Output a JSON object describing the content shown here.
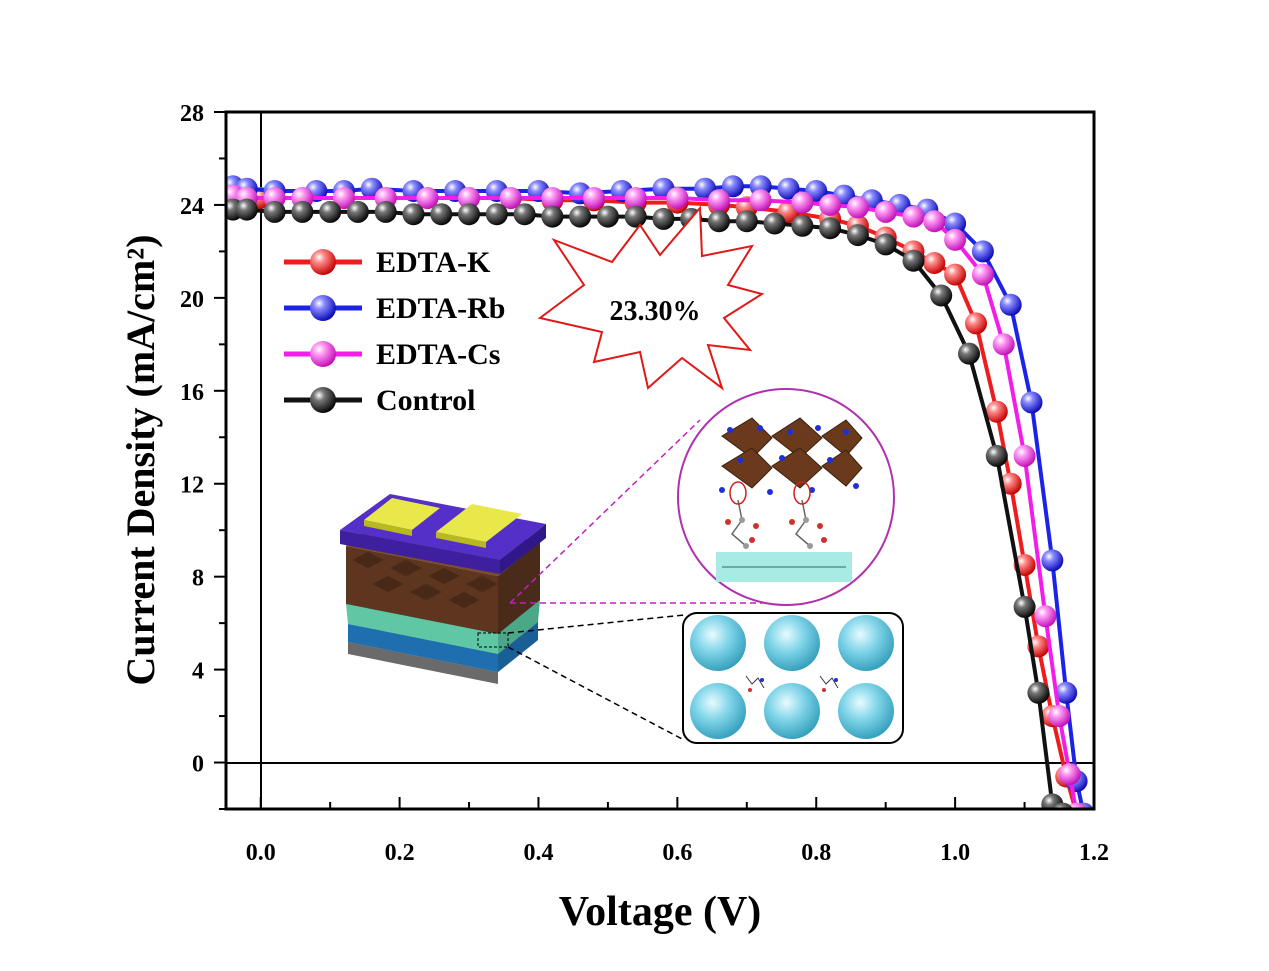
{
  "chart_data": {
    "type": "line",
    "xlabel": "Voltage (V)",
    "ylabel": "Current Density (mA/cm²)",
    "xlim": [
      -0.05,
      1.2
    ],
    "ylim": [
      -2,
      28
    ],
    "xticks": [
      "0.0",
      "0.2",
      "0.4",
      "0.6",
      "0.8",
      "1.0",
      "1.2"
    ],
    "xtick_values": [
      0,
      0.2,
      0.4,
      0.6,
      0.8,
      1.0,
      1.2
    ],
    "yticks": [
      "0",
      "4",
      "8",
      "12",
      "16",
      "20",
      "24",
      "28"
    ],
    "ytick_values": [
      0,
      4,
      8,
      12,
      16,
      20,
      24,
      28
    ],
    "grid": false,
    "legend_position": "top-left",
    "annotation": "23.30%",
    "series": [
      {
        "name": "EDTA-K",
        "color": "#ee1c1c",
        "x": [
          -0.04,
          0.0,
          0.06,
          0.12,
          0.18,
          0.24,
          0.3,
          0.36,
          0.42,
          0.48,
          0.54,
          0.6,
          0.66,
          0.7,
          0.76,
          0.82,
          0.86,
          0.9,
          0.94,
          0.97,
          1.0,
          1.03,
          1.06,
          1.08,
          1.1,
          1.12,
          1.14,
          1.16,
          1.175
        ],
        "y": [
          24.4,
          24.3,
          24.3,
          24.3,
          24.3,
          24.3,
          24.3,
          24.3,
          24.2,
          24.2,
          24.1,
          24.1,
          24.0,
          23.9,
          23.7,
          23.4,
          23.1,
          22.6,
          22.0,
          21.5,
          21.0,
          18.9,
          15.1,
          12.0,
          8.5,
          5.0,
          2.0,
          -0.6,
          -2.2
        ]
      },
      {
        "name": "EDTA-Rb",
        "color": "#1c23e8",
        "x": [
          -0.04,
          -0.02,
          0.02,
          0.08,
          0.12,
          0.16,
          0.22,
          0.28,
          0.34,
          0.4,
          0.46,
          0.52,
          0.58,
          0.64,
          0.68,
          0.72,
          0.76,
          0.8,
          0.84,
          0.88,
          0.92,
          0.96,
          1.0,
          1.04,
          1.08,
          1.11,
          1.14,
          1.16,
          1.175,
          1.185
        ],
        "y": [
          24.8,
          24.7,
          24.6,
          24.6,
          24.6,
          24.7,
          24.6,
          24.6,
          24.6,
          24.6,
          24.5,
          24.6,
          24.7,
          24.7,
          24.8,
          24.8,
          24.7,
          24.6,
          24.4,
          24.2,
          24.0,
          23.8,
          23.2,
          22.0,
          19.7,
          15.5,
          8.7,
          3.0,
          -0.8,
          -2.2
        ]
      },
      {
        "name": "EDTA-Cs",
        "color": "#f21ee8",
        "x": [
          -0.04,
          -0.02,
          0.02,
          0.06,
          0.12,
          0.18,
          0.24,
          0.3,
          0.36,
          0.42,
          0.48,
          0.54,
          0.6,
          0.66,
          0.72,
          0.78,
          0.82,
          0.86,
          0.9,
          0.94,
          0.97,
          1.0,
          1.04,
          1.07,
          1.1,
          1.13,
          1.15,
          1.165,
          1.175
        ],
        "y": [
          24.4,
          24.3,
          24.3,
          24.3,
          24.3,
          24.3,
          24.3,
          24.3,
          24.3,
          24.3,
          24.3,
          24.3,
          24.3,
          24.2,
          24.2,
          24.1,
          24.0,
          23.9,
          23.7,
          23.5,
          23.3,
          22.5,
          21.0,
          18.0,
          13.2,
          6.3,
          2.0,
          -0.5,
          -2.2
        ]
      },
      {
        "name": "Control",
        "color": "#111111",
        "x": [
          -0.04,
          -0.02,
          0.02,
          0.06,
          0.1,
          0.14,
          0.18,
          0.22,
          0.26,
          0.3,
          0.34,
          0.38,
          0.42,
          0.46,
          0.5,
          0.54,
          0.58,
          0.62,
          0.66,
          0.7,
          0.74,
          0.78,
          0.82,
          0.86,
          0.9,
          0.94,
          0.98,
          1.02,
          1.06,
          1.1,
          1.12,
          1.14,
          1.155
        ],
        "y": [
          23.8,
          23.8,
          23.7,
          23.7,
          23.7,
          23.7,
          23.7,
          23.6,
          23.6,
          23.6,
          23.6,
          23.6,
          23.5,
          23.5,
          23.5,
          23.5,
          23.4,
          23.4,
          23.3,
          23.3,
          23.2,
          23.1,
          23.0,
          22.7,
          22.3,
          21.6,
          20.1,
          17.6,
          13.2,
          6.7,
          3.0,
          -1.8,
          -2.2
        ]
      }
    ]
  }
}
